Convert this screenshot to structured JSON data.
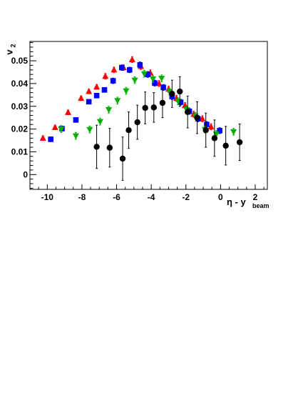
{
  "chart_data": {
    "type": "scatter",
    "title": "",
    "xlabel": {
      "main": "η - y",
      "sub": "beam"
    },
    "ylabel": {
      "main": "v",
      "sub": "2"
    },
    "xlim": [
      -11,
      2.7
    ],
    "ylim": [
      -0.0065,
      0.0585
    ],
    "x_ticks": [
      -10,
      -8,
      -6,
      -4,
      -2,
      0,
      2
    ],
    "y_ticks": [
      0,
      0.01,
      0.02,
      0.03,
      0.04,
      0.05
    ],
    "x_tick_labels": [
      "-10",
      "-8",
      "-6",
      "-4",
      "-2",
      "0",
      "2"
    ],
    "y_tick_labels": [
      "0",
      "0.01",
      "0.02",
      "0.03",
      "0.04",
      "0.05"
    ],
    "grid": false,
    "series": [
      {
        "marker": "triangle-up",
        "color": "#ff0000",
        "points": [
          {
            "x": -10.25,
            "y": 0.016,
            "err": 0.001
          },
          {
            "x": -9.55,
            "y": 0.0207,
            "err": 0.001
          },
          {
            "x": -8.8,
            "y": 0.0273,
            "err": 0.001
          },
          {
            "x": -8.05,
            "y": 0.0335,
            "err": 0.001
          },
          {
            "x": -7.6,
            "y": 0.0365,
            "err": 0.001
          },
          {
            "x": -7.15,
            "y": 0.0385,
            "err": 0.001
          },
          {
            "x": -6.65,
            "y": 0.0432,
            "err": 0.0012
          },
          {
            "x": -6.15,
            "y": 0.046,
            "err": 0.0012
          },
          {
            "x": -5.6,
            "y": 0.047,
            "err": 0.0012
          },
          {
            "x": -5.1,
            "y": 0.0505,
            "err": 0.0013
          },
          {
            "x": -4.6,
            "y": 0.0475,
            "err": 0.0013
          },
          {
            "x": -4.05,
            "y": 0.0447,
            "err": 0.0013
          },
          {
            "x": -3.55,
            "y": 0.04,
            "err": 0.0013
          },
          {
            "x": -3.0,
            "y": 0.0375,
            "err": 0.0013
          },
          {
            "x": -2.55,
            "y": 0.0335,
            "err": 0.0013
          },
          {
            "x": -2.05,
            "y": 0.0303,
            "err": 0.0013
          },
          {
            "x": -1.55,
            "y": 0.0265,
            "err": 0.0013
          },
          {
            "x": -1.05,
            "y": 0.0245,
            "err": 0.0013
          },
          {
            "x": -0.55,
            "y": 0.021,
            "err": 0.0013
          }
        ]
      },
      {
        "marker": "square",
        "color": "#0000ff",
        "points": [
          {
            "x": -9.8,
            "y": 0.0155,
            "err": 0.001
          },
          {
            "x": -9.15,
            "y": 0.0202,
            "err": 0.001
          },
          {
            "x": -8.35,
            "y": 0.024,
            "err": 0.001
          },
          {
            "x": -7.6,
            "y": 0.032,
            "err": 0.001
          },
          {
            "x": -7.15,
            "y": 0.0347,
            "err": 0.001
          },
          {
            "x": -6.7,
            "y": 0.0372,
            "err": 0.001
          },
          {
            "x": -6.2,
            "y": 0.0412,
            "err": 0.0012
          },
          {
            "x": -5.7,
            "y": 0.047,
            "err": 0.0012
          },
          {
            "x": -5.25,
            "y": 0.046,
            "err": 0.0012
          },
          {
            "x": -4.65,
            "y": 0.0482,
            "err": 0.0013
          },
          {
            "x": -4.2,
            "y": 0.044,
            "err": 0.0013
          },
          {
            "x": -3.8,
            "y": 0.0402,
            "err": 0.0013
          },
          {
            "x": -3.3,
            "y": 0.0383,
            "err": 0.0013
          },
          {
            "x": -2.8,
            "y": 0.0343,
            "err": 0.0013
          },
          {
            "x": -2.3,
            "y": 0.0318,
            "err": 0.0013
          },
          {
            "x": -1.8,
            "y": 0.0278,
            "err": 0.0013
          },
          {
            "x": -1.3,
            "y": 0.0245,
            "err": 0.0013
          },
          {
            "x": -0.8,
            "y": 0.022,
            "err": 0.0013
          },
          {
            "x": -0.05,
            "y": 0.0193,
            "err": 0.0013
          }
        ]
      },
      {
        "marker": "triangle-down",
        "color": "#00b000",
        "points": [
          {
            "x": -9.2,
            "y": 0.02,
            "err": 0.0015
          },
          {
            "x": -8.35,
            "y": 0.017,
            "err": 0.0015
          },
          {
            "x": -7.55,
            "y": 0.0198,
            "err": 0.0015
          },
          {
            "x": -6.95,
            "y": 0.0233,
            "err": 0.0015
          },
          {
            "x": -6.45,
            "y": 0.0285,
            "err": 0.0015
          },
          {
            "x": -5.95,
            "y": 0.0325,
            "err": 0.0015
          },
          {
            "x": -5.45,
            "y": 0.0368,
            "err": 0.0015
          },
          {
            "x": -4.95,
            "y": 0.0415,
            "err": 0.0015
          },
          {
            "x": -4.4,
            "y": 0.0443,
            "err": 0.0015
          },
          {
            "x": -3.9,
            "y": 0.042,
            "err": 0.0015
          },
          {
            "x": -3.4,
            "y": 0.0423,
            "err": 0.0015
          },
          {
            "x": -2.95,
            "y": 0.0365,
            "err": 0.0015
          },
          {
            "x": -2.45,
            "y": 0.0322,
            "err": 0.0015
          },
          {
            "x": -1.95,
            "y": 0.0285,
            "err": 0.0015
          },
          {
            "x": -1.45,
            "y": 0.0258,
            "err": 0.0015
          },
          {
            "x": -0.9,
            "y": 0.0198,
            "err": 0.0015
          },
          {
            "x": -0.25,
            "y": 0.0178,
            "err": 0.0015
          },
          {
            "x": 0.75,
            "y": 0.0188,
            "err": 0.0015
          }
        ]
      },
      {
        "marker": "circle",
        "color": "#000000",
        "points": [
          {
            "x": -7.15,
            "y": 0.0122,
            "err": 0.0095
          },
          {
            "x": -6.4,
            "y": 0.0118,
            "err": 0.0085
          },
          {
            "x": -5.65,
            "y": 0.007,
            "err": 0.0095
          },
          {
            "x": -5.3,
            "y": 0.0195,
            "err": 0.008
          },
          {
            "x": -4.8,
            "y": 0.023,
            "err": 0.0075
          },
          {
            "x": -4.35,
            "y": 0.0293,
            "err": 0.007
          },
          {
            "x": -3.85,
            "y": 0.0295,
            "err": 0.0065
          },
          {
            "x": -3.35,
            "y": 0.0315,
            "err": 0.0065
          },
          {
            "x": -2.8,
            "y": 0.0355,
            "err": 0.006
          },
          {
            "x": -2.35,
            "y": 0.0365,
            "err": 0.0065
          },
          {
            "x": -1.9,
            "y": 0.0275,
            "err": 0.007
          },
          {
            "x": -1.35,
            "y": 0.025,
            "err": 0.007
          },
          {
            "x": -0.85,
            "y": 0.0195,
            "err": 0.0075
          },
          {
            "x": -0.35,
            "y": 0.016,
            "err": 0.008
          },
          {
            "x": 0.3,
            "y": 0.0127,
            "err": 0.0085
          },
          {
            "x": 1.1,
            "y": 0.0142,
            "err": 0.008
          }
        ]
      }
    ]
  }
}
